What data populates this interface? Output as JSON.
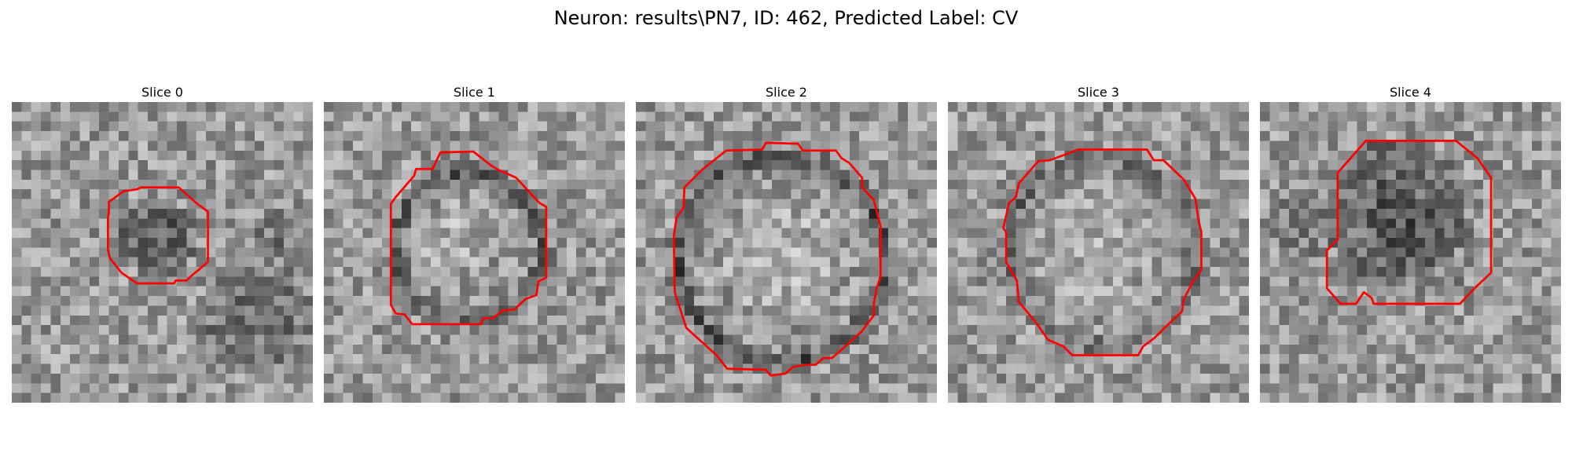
{
  "figure": {
    "title": "Neuron: results\\PN7, ID: 462, Predicted Label: CV"
  },
  "colors": {
    "contour": "#ff0000",
    "background": "#ffffff",
    "colormap": "gray"
  },
  "panels": [
    {
      "title": "Slice 0"
    },
    {
      "title": "Slice 1"
    },
    {
      "title": "Slice 2"
    },
    {
      "title": "Slice 3"
    },
    {
      "title": "Slice 4"
    }
  ]
}
